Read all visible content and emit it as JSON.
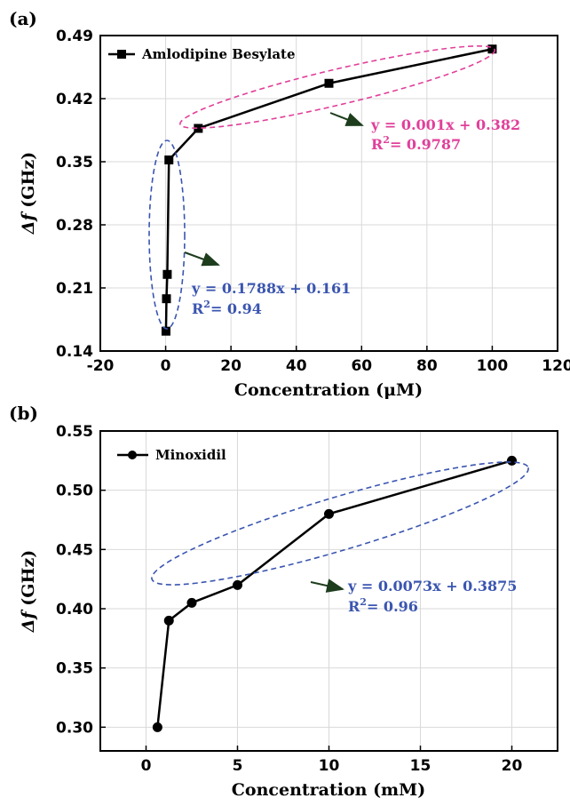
{
  "chart_data": [
    {
      "panel_label": "(a)",
      "type": "line",
      "marker": "square",
      "xlabel": "Concentration (μM)",
      "ylabel_italic": "Δf",
      "ylabel_unit": " (GHz)",
      "xlim": [
        -20,
        120
      ],
      "ylim": [
        0.14,
        0.49
      ],
      "xticks": [
        -20,
        0,
        20,
        40,
        60,
        80,
        100,
        120
      ],
      "yticks": [
        0.14,
        0.21,
        0.28,
        0.35,
        0.42,
        0.49
      ],
      "ytick_decimals": 2,
      "grid": true,
      "legend_position": "top-left",
      "series": [
        {
          "name": "Amlodipine Besylate",
          "x": [
            0.1,
            0.25,
            0.5,
            1,
            10,
            50,
            100
          ],
          "y": [
            0.162,
            0.198,
            0.225,
            0.352,
            0.387,
            0.437,
            0.475
          ]
        }
      ],
      "annotations": [
        {
          "id": "fit-high",
          "color": "#e0409a",
          "line1": "y = 0.001x + 0.382",
          "line2_prefix": "R",
          "line2_sup": "2",
          "line2_suffix": "= 0.9787"
        },
        {
          "id": "fit-low",
          "color": "#3a55b0",
          "line1": "y = 0.1788x + 0.161",
          "line2_prefix": "R",
          "line2_sup": "2",
          "line2_suffix": "= 0.94"
        }
      ]
    },
    {
      "panel_label": "(b)",
      "type": "line",
      "marker": "circle",
      "xlabel": "Concentration (mM)",
      "ylabel_italic": "Δf",
      "ylabel_unit": " (GHz)",
      "xlim": [
        -2.5,
        22.5
      ],
      "ylim": [
        0.28,
        0.55
      ],
      "xticks": [
        0,
        5,
        10,
        15,
        20
      ],
      "yticks": [
        0.3,
        0.35,
        0.4,
        0.45,
        0.5,
        0.55
      ],
      "ytick_decimals": 2,
      "grid": true,
      "legend_position": "top-left",
      "series": [
        {
          "name": "Minoxidil",
          "x": [
            0.625,
            1.25,
            2.5,
            5,
            10,
            20
          ],
          "y": [
            0.3,
            0.39,
            0.405,
            0.42,
            0.48,
            0.525
          ]
        }
      ],
      "annotations": [
        {
          "id": "fit-b",
          "color": "#3a55b0",
          "line1": "y = 0.0073x + 0.3875",
          "line2_prefix": "R",
          "line2_sup": "2",
          "line2_suffix": "= 0.96"
        }
      ]
    }
  ]
}
